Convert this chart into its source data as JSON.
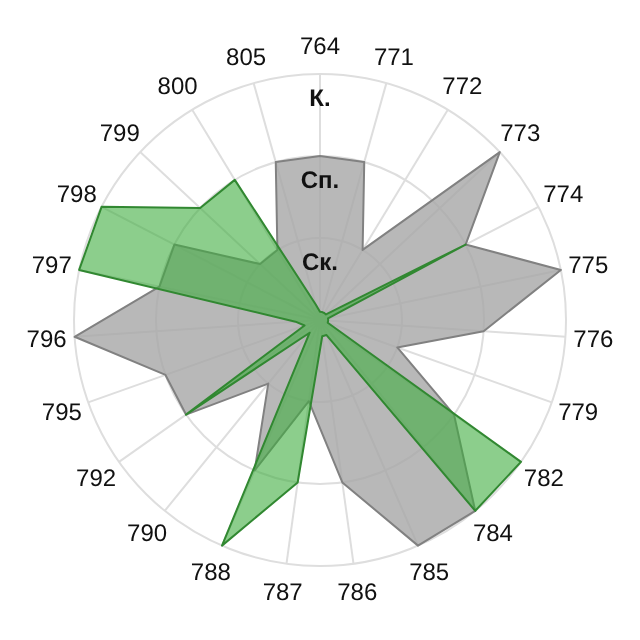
{
  "chart_data": {
    "type": "radar",
    "categories": [
      "764",
      "771",
      "772",
      "773",
      "774",
      "775",
      "776",
      "779",
      "782",
      "784",
      "785",
      "786",
      "787",
      "788",
      "790",
      "792",
      "795",
      "796",
      "797",
      "798",
      "799",
      "800",
      "805"
    ],
    "series": [
      {
        "color": "#a6a6a6",
        "values": [
          2,
          2,
          1,
          3,
          2,
          3,
          2,
          1,
          2,
          3,
          3,
          2,
          1,
          2,
          1,
          2,
          2,
          3,
          2,
          2,
          1,
          1,
          2
        ]
      },
      {
        "color": "#3fae3f",
        "values": [
          0.1,
          0.1,
          0.1,
          0.1,
          2,
          0.1,
          0.1,
          0.1,
          3,
          3,
          0.2,
          0.2,
          2,
          3,
          0.2,
          2,
          0.2,
          0.3,
          3,
          3,
          2,
          2,
          0.2
        ]
      }
    ],
    "ylim": [
      0,
      3
    ],
    "yticks": [
      {
        "value": 1,
        "label": "Ск."
      },
      {
        "value": 2,
        "label": "Сп."
      },
      {
        "value": 3,
        "label": "К."
      }
    ],
    "grid": true,
    "marker": "none",
    "line_style": "solid"
  }
}
